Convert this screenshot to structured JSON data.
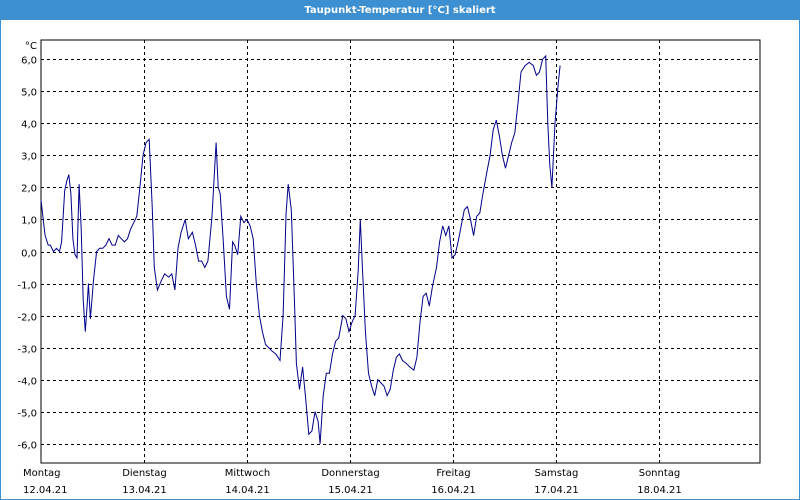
{
  "window": {
    "title": "Taupunkt-Temperatur [°C] skaliert"
  },
  "chart_data": {
    "type": "line",
    "title": "Taupunkt-Temperatur [°C] skaliert",
    "unit": "°C",
    "ylim": [
      -6.6,
      6.6
    ],
    "yticks": [
      6,
      5,
      4,
      3,
      2,
      1,
      0,
      -1,
      -2,
      -3,
      -4,
      -5,
      -6
    ],
    "ytick_labels": [
      "6,0",
      "5,0",
      "4,0",
      "3,0",
      "2,0",
      "1,0",
      "0,0",
      "-1,0",
      "-2,0",
      "-3,0",
      "-4,0",
      "-5,0",
      "-6,0"
    ],
    "xlim": [
      0,
      7
    ],
    "days": [
      {
        "name": "Montag",
        "date": "12.04.21"
      },
      {
        "name": "Dienstag",
        "date": "13.04.21"
      },
      {
        "name": "Mittwoch",
        "date": "14.04.21"
      },
      {
        "name": "Donnerstag",
        "date": "15.04.21"
      },
      {
        "name": "Freitag",
        "date": "16.04.21"
      },
      {
        "name": "Samstag",
        "date": "17.04.21"
      },
      {
        "name": "Sonntag",
        "date": "18.04.21"
      }
    ],
    "grid": true,
    "line_color": "#00008b",
    "series": [
      {
        "points": [
          [
            0.0,
            1.6
          ],
          [
            0.04,
            0.5
          ],
          [
            0.07,
            0.2
          ],
          [
            0.09,
            0.2
          ],
          [
            0.12,
            0.0
          ],
          [
            0.15,
            0.1
          ],
          [
            0.18,
            0.0
          ],
          [
            0.2,
            0.3
          ],
          [
            0.23,
            1.9
          ],
          [
            0.25,
            2.2
          ],
          [
            0.27,
            2.4
          ],
          [
            0.29,
            1.8
          ],
          [
            0.31,
            0.4
          ],
          [
            0.33,
            -0.1
          ],
          [
            0.35,
            -0.2
          ],
          [
            0.37,
            2.1
          ],
          [
            0.39,
            0.7
          ],
          [
            0.41,
            -1.5
          ],
          [
            0.43,
            -2.5
          ],
          [
            0.45,
            -1.6
          ],
          [
            0.46,
            -1.0
          ],
          [
            0.48,
            -2.1
          ],
          [
            0.51,
            -0.9
          ],
          [
            0.54,
            0.0
          ],
          [
            0.57,
            0.1
          ],
          [
            0.6,
            0.1
          ],
          [
            0.63,
            0.2
          ],
          [
            0.66,
            0.4
          ],
          [
            0.69,
            0.2
          ],
          [
            0.72,
            0.2
          ],
          [
            0.75,
            0.5
          ],
          [
            0.78,
            0.4
          ],
          [
            0.81,
            0.3
          ],
          [
            0.84,
            0.4
          ],
          [
            0.87,
            0.7
          ],
          [
            0.9,
            0.9
          ],
          [
            0.93,
            1.1
          ],
          [
            0.96,
            2.0
          ],
          [
            0.99,
            3.0
          ],
          [
            1.02,
            3.4
          ],
          [
            1.05,
            3.5
          ],
          [
            1.08,
            1.4
          ],
          [
            1.1,
            -0.5
          ],
          [
            1.13,
            -1.2
          ],
          [
            1.17,
            -0.9
          ],
          [
            1.2,
            -0.7
          ],
          [
            1.24,
            -0.8
          ],
          [
            1.27,
            -0.7
          ],
          [
            1.3,
            -1.2
          ],
          [
            1.33,
            0.1
          ],
          [
            1.36,
            0.6
          ],
          [
            1.4,
            1.0
          ],
          [
            1.43,
            0.4
          ],
          [
            1.47,
            0.6
          ],
          [
            1.5,
            0.2
          ],
          [
            1.53,
            -0.3
          ],
          [
            1.56,
            -0.3
          ],
          [
            1.59,
            -0.5
          ],
          [
            1.62,
            -0.3
          ],
          [
            1.66,
            1.1
          ],
          [
            1.7,
            3.4
          ],
          [
            1.72,
            2.0
          ],
          [
            1.74,
            1.8
          ],
          [
            1.77,
            0.3
          ],
          [
            1.8,
            -1.4
          ],
          [
            1.83,
            -1.8
          ],
          [
            1.86,
            0.3
          ],
          [
            1.88,
            0.2
          ],
          [
            1.91,
            -0.1
          ],
          [
            1.94,
            1.1
          ],
          [
            1.97,
            0.9
          ],
          [
            2.0,
            1.0
          ],
          [
            2.03,
            0.8
          ],
          [
            2.06,
            0.4
          ],
          [
            2.09,
            -1.0
          ],
          [
            2.12,
            -2.0
          ],
          [
            2.15,
            -2.5
          ],
          [
            2.18,
            -2.9
          ],
          [
            2.21,
            -3.0
          ],
          [
            2.24,
            -3.1
          ],
          [
            2.28,
            -3.2
          ],
          [
            2.32,
            -3.4
          ],
          [
            2.35,
            -2.0
          ],
          [
            2.38,
            1.2
          ],
          [
            2.4,
            2.1
          ],
          [
            2.43,
            1.3
          ],
          [
            2.46,
            -1.5
          ],
          [
            2.48,
            -3.5
          ],
          [
            2.51,
            -4.3
          ],
          [
            2.54,
            -3.6
          ],
          [
            2.57,
            -4.6
          ],
          [
            2.6,
            -5.7
          ],
          [
            2.63,
            -5.6
          ],
          [
            2.66,
            -5.0
          ],
          [
            2.69,
            -5.3
          ],
          [
            2.71,
            -6.0
          ],
          [
            2.74,
            -4.5
          ],
          [
            2.77,
            -3.8
          ],
          [
            2.8,
            -3.8
          ],
          [
            2.83,
            -3.2
          ],
          [
            2.86,
            -2.8
          ],
          [
            2.89,
            -2.7
          ],
          [
            2.93,
            -2.0
          ],
          [
            2.96,
            -2.1
          ],
          [
            2.99,
            -2.5
          ],
          [
            3.02,
            -2.2
          ],
          [
            3.05,
            -2.0
          ],
          [
            3.08,
            -0.6
          ],
          [
            3.1,
            1.0
          ],
          [
            3.12,
            -0.5
          ],
          [
            3.15,
            -2.5
          ],
          [
            3.18,
            -3.8
          ],
          [
            3.21,
            -4.2
          ],
          [
            3.24,
            -4.5
          ],
          [
            3.27,
            -4.0
          ],
          [
            3.3,
            -4.1
          ],
          [
            3.33,
            -4.2
          ],
          [
            3.36,
            -4.5
          ],
          [
            3.39,
            -4.3
          ],
          [
            3.42,
            -3.7
          ],
          [
            3.45,
            -3.3
          ],
          [
            3.48,
            -3.2
          ],
          [
            3.51,
            -3.4
          ],
          [
            3.55,
            -3.5
          ],
          [
            3.58,
            -3.6
          ],
          [
            3.62,
            -3.7
          ],
          [
            3.65,
            -3.3
          ],
          [
            3.68,
            -2.2
          ],
          [
            3.71,
            -1.4
          ],
          [
            3.74,
            -1.3
          ],
          [
            3.77,
            -1.7
          ],
          [
            3.8,
            -1.1
          ],
          [
            3.84,
            -0.5
          ],
          [
            3.87,
            0.3
          ],
          [
            3.9,
            0.8
          ],
          [
            3.93,
            0.5
          ],
          [
            3.96,
            0.8
          ],
          [
            3.99,
            -0.2
          ],
          [
            4.02,
            -0.1
          ],
          [
            4.05,
            0.3
          ],
          [
            4.08,
            0.8
          ],
          [
            4.11,
            1.3
          ],
          [
            4.14,
            1.4
          ],
          [
            4.17,
            1.0
          ],
          [
            4.2,
            0.5
          ],
          [
            4.23,
            1.1
          ],
          [
            4.26,
            1.2
          ],
          [
            4.29,
            1.8
          ],
          [
            4.33,
            2.5
          ],
          [
            4.36,
            3.0
          ],
          [
            4.39,
            3.8
          ],
          [
            4.42,
            4.1
          ],
          [
            4.45,
            3.6
          ],
          [
            4.48,
            3.0
          ],
          [
            4.51,
            2.6
          ],
          [
            4.54,
            3.0
          ],
          [
            4.57,
            3.4
          ],
          [
            4.6,
            3.7
          ],
          [
            4.63,
            4.6
          ],
          [
            4.66,
            5.6
          ],
          [
            4.7,
            5.8
          ],
          [
            4.74,
            5.9
          ],
          [
            4.78,
            5.8
          ],
          [
            4.81,
            5.5
          ],
          [
            4.84,
            5.6
          ],
          [
            4.87,
            6.0
          ],
          [
            4.9,
            6.1
          ],
          [
            4.92,
            4.0
          ],
          [
            4.94,
            2.7
          ],
          [
            4.96,
            2.0
          ],
          [
            4.99,
            4.0
          ],
          [
            5.02,
            5.2
          ],
          [
            5.04,
            5.8
          ]
        ]
      }
    ]
  }
}
